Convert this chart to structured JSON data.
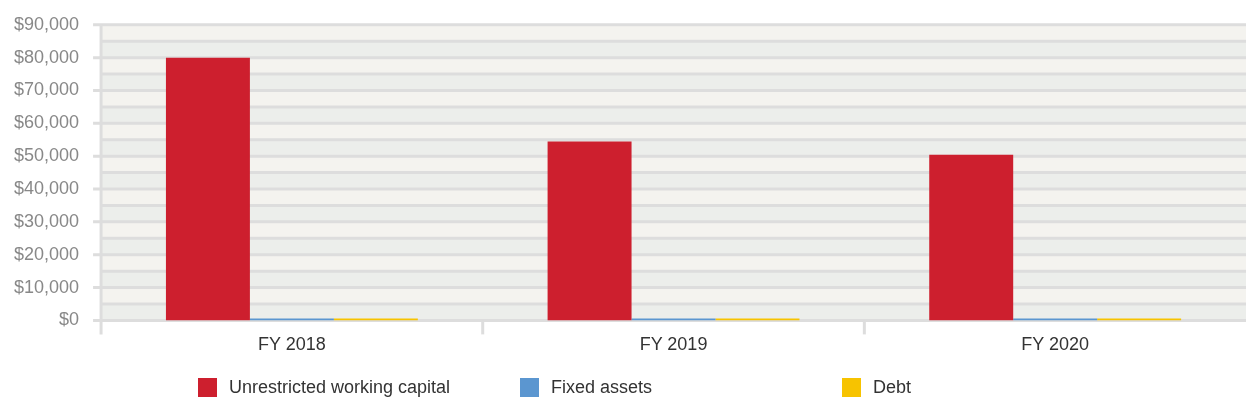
{
  "chart_data": {
    "type": "bar",
    "categories": [
      "FY 2018",
      "FY 2019",
      "FY 2020"
    ],
    "series": [
      {
        "name": "Unrestricted working capital",
        "color": "#cd1f2e",
        "values": [
          80000,
          54500,
          50400
        ]
      },
      {
        "name": "Fixed assets",
        "color": "#5b96d0",
        "values": [
          0,
          0,
          0
        ]
      },
      {
        "name": "Debt",
        "color": "#f7c300",
        "values": [
          0,
          0,
          0
        ]
      }
    ],
    "ylim": [
      0,
      90000
    ],
    "yticks": [
      {
        "value": 0,
        "label": "$0"
      },
      {
        "value": 10000,
        "label": "$10,000"
      },
      {
        "value": 20000,
        "label": "$20,000"
      },
      {
        "value": 30000,
        "label": "$30,000"
      },
      {
        "value": 40000,
        "label": "$40,000"
      },
      {
        "value": 50000,
        "label": "$50,000"
      },
      {
        "value": 60000,
        "label": "$60,000"
      },
      {
        "value": 70000,
        "label": "$70,000"
      },
      {
        "value": 80000,
        "label": "$80,000"
      },
      {
        "value": 90000,
        "label": "$90,000"
      }
    ],
    "bands": [
      {
        "axis": "y",
        "from": 0,
        "to": 5000,
        "color": "#eceeeb"
      },
      {
        "axis": "y",
        "from": 10000,
        "to": 15000,
        "color": "#eceeeb"
      },
      {
        "axis": "y",
        "from": 20000,
        "to": 25000,
        "color": "#eceeeb"
      },
      {
        "axis": "y",
        "from": 30000,
        "to": 35000,
        "color": "#eceeeb"
      },
      {
        "axis": "y",
        "from": 40000,
        "to": 45000,
        "color": "#eceeeb"
      },
      {
        "axis": "y",
        "from": 50000,
        "to": 55000,
        "color": "#eceeeb"
      },
      {
        "axis": "y",
        "from": 60000,
        "to": 65000,
        "color": "#eceeeb"
      },
      {
        "axis": "y",
        "from": 70000,
        "to": 75000,
        "color": "#eceeeb"
      },
      {
        "axis": "y",
        "from": 80000,
        "to": 85000,
        "color": "#eceeeb"
      }
    ],
    "grid": "y",
    "legend": "bottom"
  }
}
